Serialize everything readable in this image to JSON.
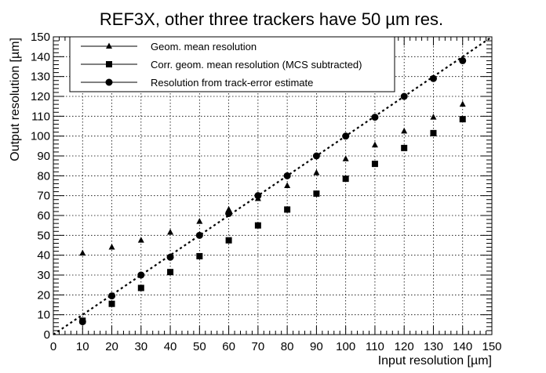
{
  "chart_data": {
    "type": "scatter",
    "title": "REF3X, other three trackers have 50 µm res.",
    "xlabel": "Input resolution [µm]",
    "ylabel": "Output resolution [µm]",
    "xlim": [
      0,
      150
    ],
    "ylim": [
      0,
      150
    ],
    "xticks": [
      "0",
      "10",
      "20",
      "30",
      "40",
      "50",
      "60",
      "70",
      "80",
      "90",
      "100",
      "110",
      "120",
      "130",
      "140",
      "150"
    ],
    "yticks": [
      "0",
      "10",
      "20",
      "30",
      "40",
      "50",
      "60",
      "70",
      "80",
      "90",
      "100",
      "110",
      "120",
      "130",
      "140",
      "150"
    ],
    "grid": true,
    "legend_position": "top-left",
    "reference_line": {
      "style": "dotted",
      "from": [
        0,
        0
      ],
      "to": [
        150,
        150
      ]
    },
    "series": [
      {
        "name": "Geom. mean resolution",
        "marker": "triangle",
        "x": [
          10,
          20,
          30,
          40,
          50,
          60,
          70,
          80,
          90,
          100,
          110,
          120,
          130,
          140
        ],
        "y": [
          41,
          44,
          47.5,
          51.5,
          57,
          63,
          68.5,
          75,
          81.5,
          88.5,
          95.5,
          102.5,
          109.5,
          116
        ]
      },
      {
        "name": "Corr. geom. mean resolution (MCS subtracted)",
        "marker": "square",
        "x": [
          10,
          20,
          30,
          40,
          50,
          60,
          70,
          80,
          90,
          100,
          110,
          120,
          130,
          140
        ],
        "y": [
          7,
          15.5,
          23.5,
          31.5,
          39.5,
          47.5,
          55,
          63,
          71,
          78.5,
          86,
          94,
          101.5,
          108.5
        ]
      },
      {
        "name": "Resolution from track-error estimate",
        "marker": "circle",
        "x": [
          10,
          20,
          30,
          40,
          50,
          60,
          70,
          80,
          90,
          100,
          110,
          120,
          130,
          140
        ],
        "y": [
          6.5,
          19.5,
          30,
          39,
          50,
          61,
          70,
          80,
          90,
          100,
          109.5,
          120,
          129,
          138
        ]
      }
    ]
  }
}
